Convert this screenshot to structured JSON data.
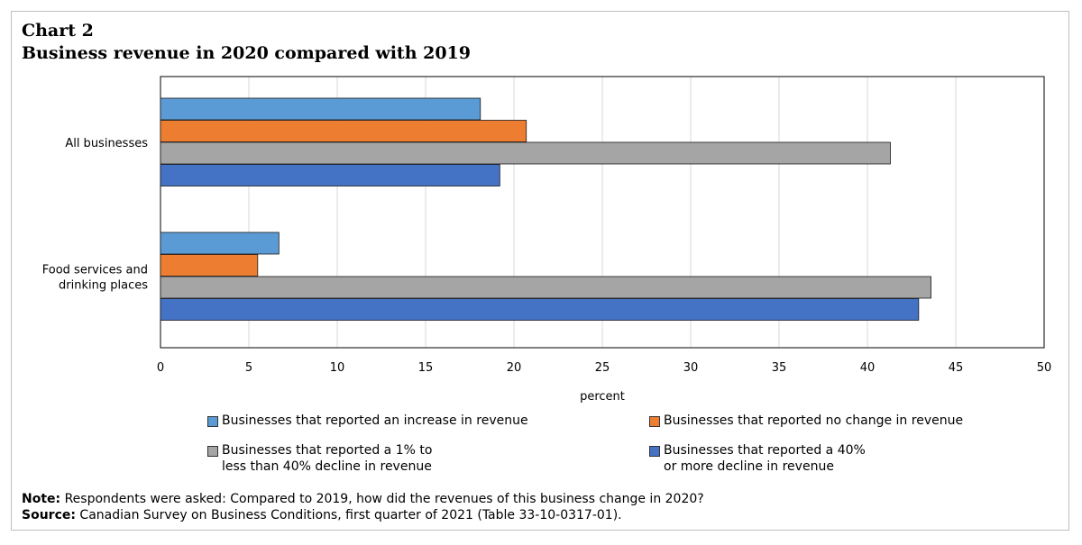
{
  "chart_label": "Chart 2",
  "chart_title": "Business revenue in 2020 compared with 2019",
  "note_label": "Note:",
  "note_text": " Respondents were asked: Compared to 2019, how did the revenues of this business change in 2020?",
  "source_label": "Source:",
  "source_text": " Canadian Survey on Business Conditions, first quarter of 2021 (Table 33-10-0317-01).",
  "chart_data": {
    "type": "bar",
    "orientation": "horizontal",
    "categories": [
      [
        "All businesses"
      ],
      [
        "Food services and",
        "drinking places"
      ]
    ],
    "series": [
      {
        "name": "Businesses that reported an increase in revenue",
        "name_lines": [
          "Businesses that reported an increase in revenue"
        ],
        "color": "#5b9bd5",
        "values": [
          18.1,
          6.7
        ]
      },
      {
        "name": "Businesses that reported no change in revenue",
        "name_lines": [
          "Businesses that reported no change in revenue"
        ],
        "color": "#ed7d31",
        "values": [
          20.7,
          5.5
        ]
      },
      {
        "name": "Businesses that reported a 1% to less than 40% decline in revenue",
        "name_lines": [
          "Businesses that reported a 1% to",
          "less than 40% decline in revenue"
        ],
        "color": "#a5a5a5",
        "values": [
          41.3,
          43.6
        ]
      },
      {
        "name": "Businesses that reported a 40% or more decline in revenue",
        "name_lines": [
          "Businesses that reported a 40%",
          "or more decline in revenue"
        ],
        "color": "#4472c4",
        "values": [
          19.2,
          42.9
        ]
      }
    ],
    "xlabel": "percent",
    "xlim": [
      0,
      50
    ],
    "xticks": [
      0,
      5,
      10,
      15,
      20,
      25,
      30,
      35,
      40,
      45,
      50
    ],
    "grid": true,
    "legend_position": "bottom"
  }
}
